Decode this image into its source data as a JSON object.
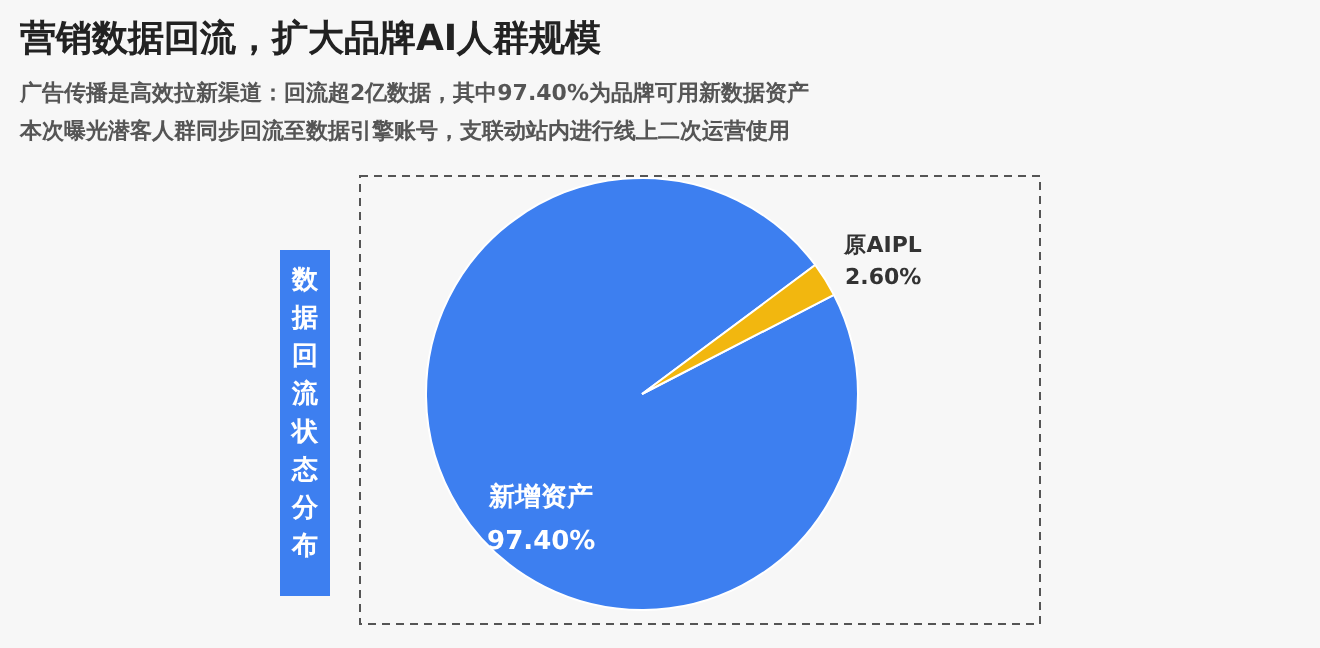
{
  "chart_data": {
    "type": "pie",
    "title": "营销数据回流，扩大品牌AI人群规模",
    "subtitle": [
      "广告传播是高效拉新渠道：回流超2亿数据，其中97.40%为品牌可用新数据资产",
      "本次曝光潜客人群同步回流至数据引擎账号，支联动站内进行线上二次运营使用"
    ],
    "annotations": [
      "数据回流状态分布"
    ],
    "categories": [
      "新增资产",
      "原AIPL"
    ],
    "values": [
      97.4,
      2.6
    ],
    "colors": [
      "#3d7ff0",
      "#f2b70f"
    ],
    "value_labels": [
      "97.40%",
      "2.60%"
    ]
  }
}
